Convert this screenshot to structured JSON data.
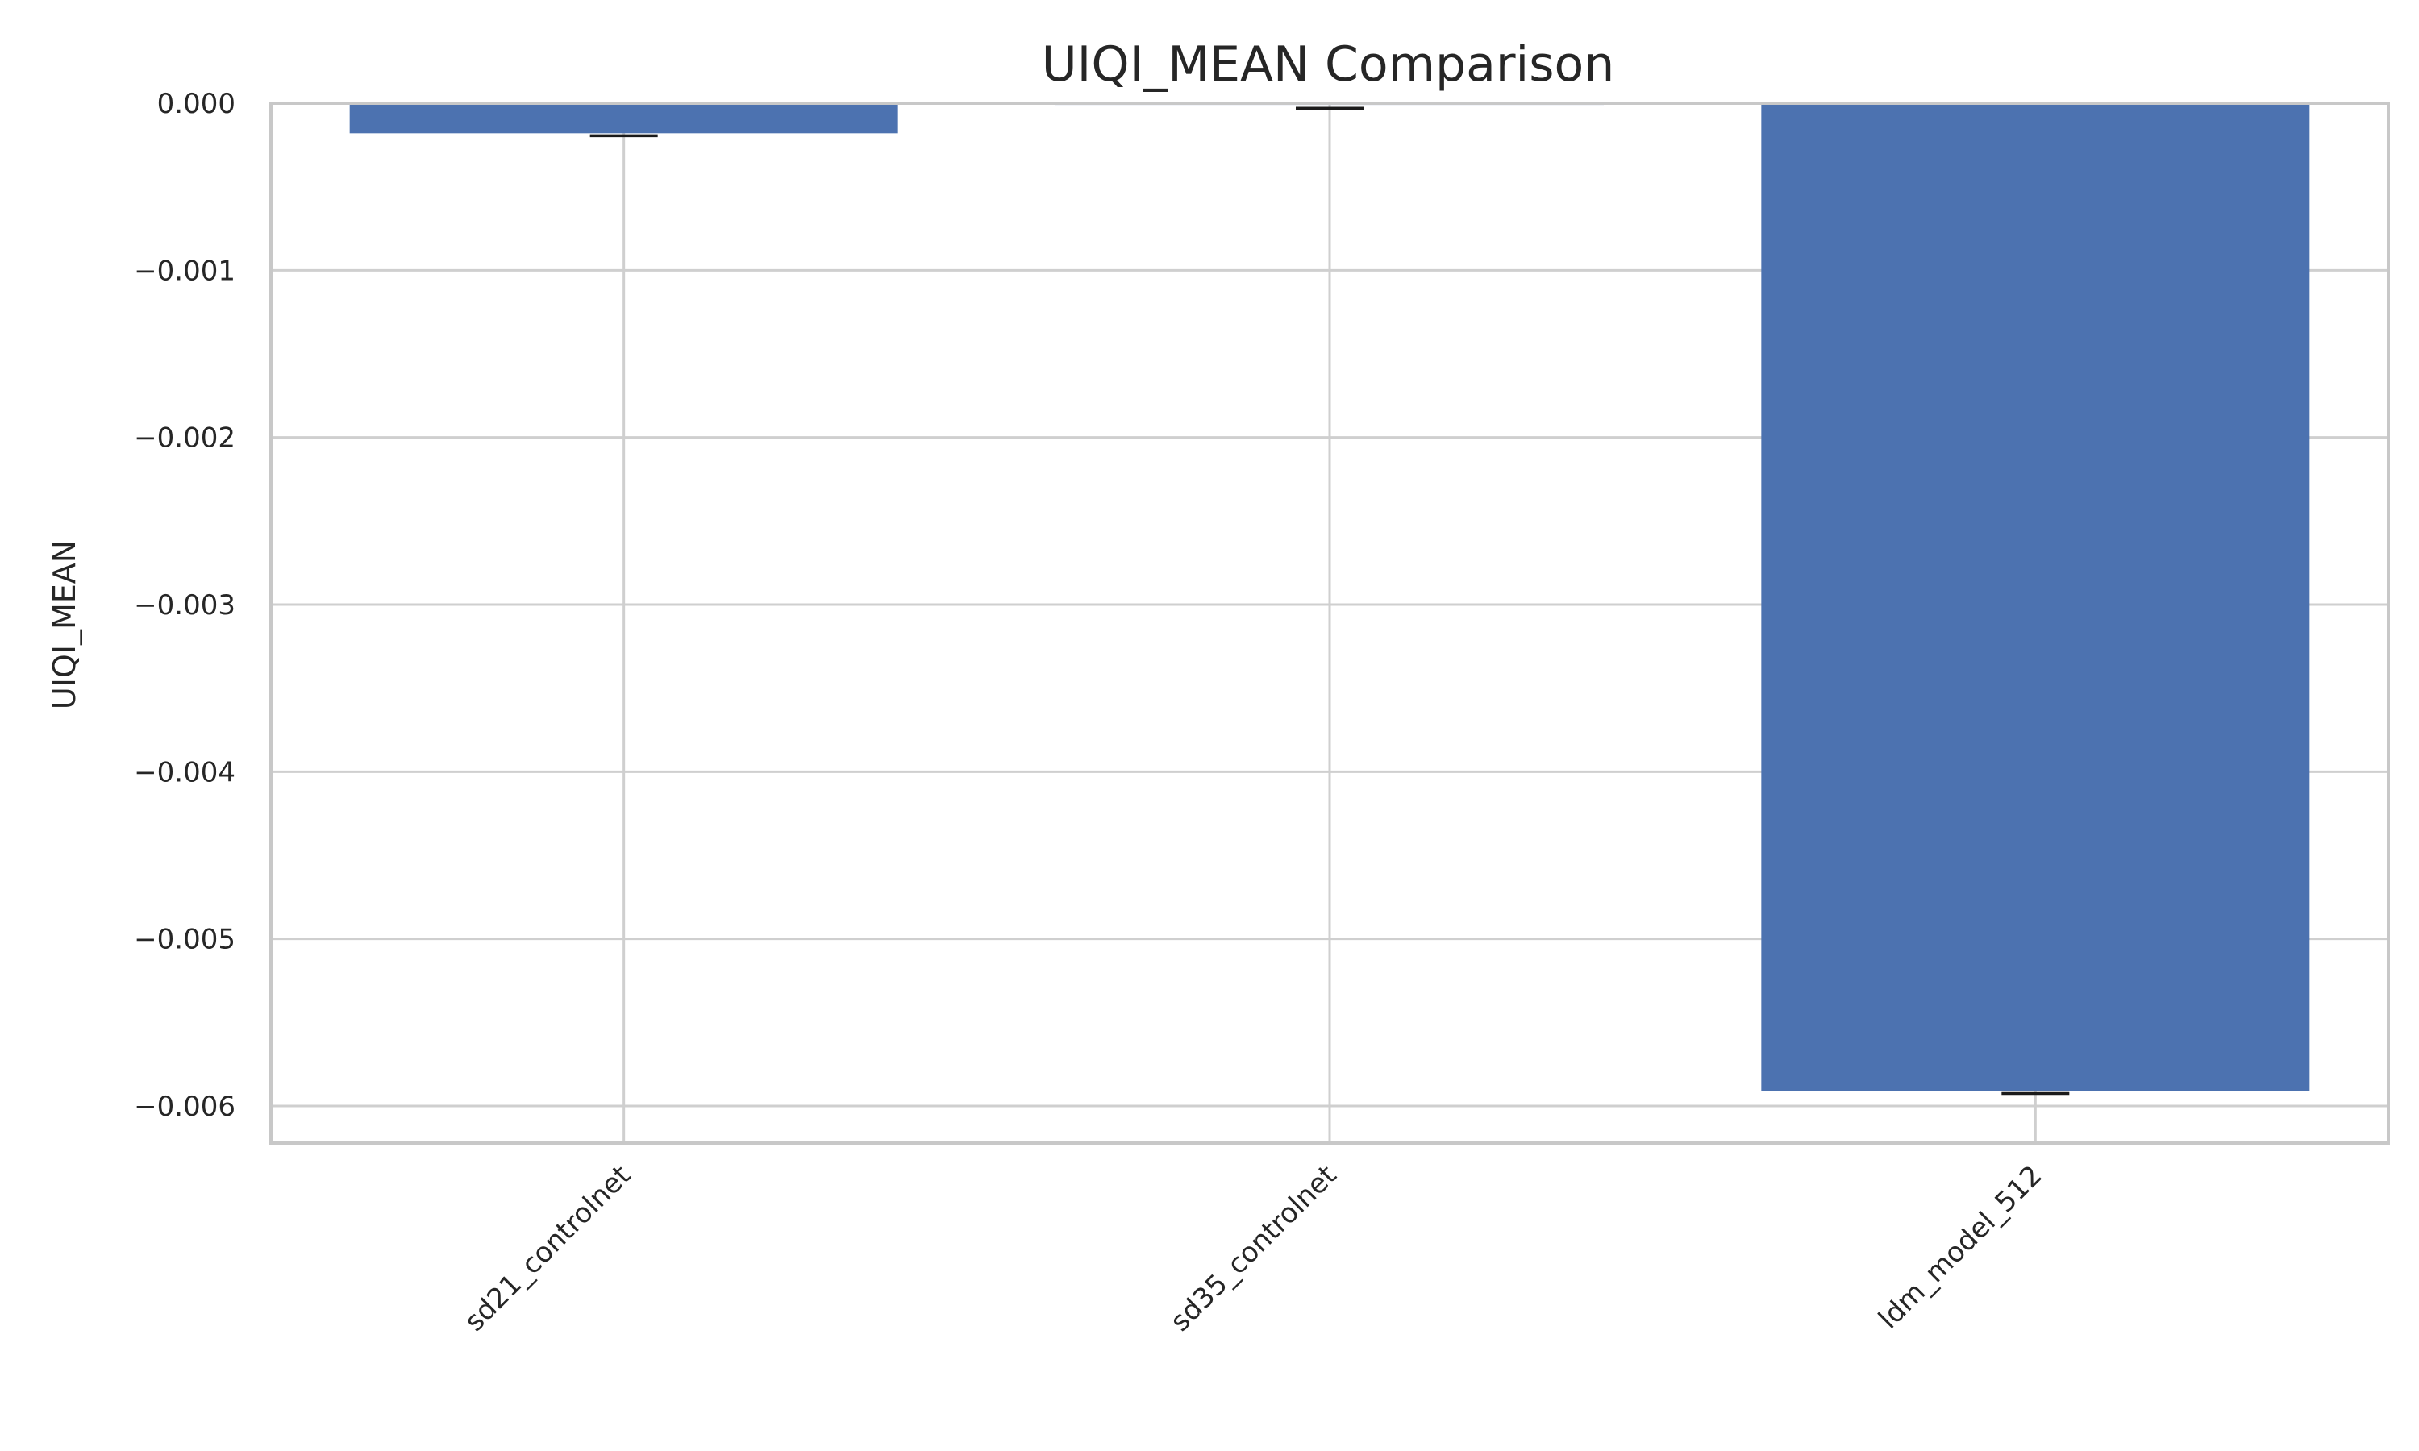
{
  "chart_data": {
    "type": "bar",
    "title": "UIQI_MEAN Comparison",
    "xlabel": "",
    "ylabel": "UIQI_MEAN",
    "categories": [
      "sd21_controlnet",
      "sd35_controlnet",
      "ldm_model_512"
    ],
    "values": [
      -0.00018,
      -1e-05,
      -0.00591
    ],
    "error_values": [
      -0.000195,
      -3e-05,
      -0.005925
    ],
    "ylim": [
      -0.0062,
      0.0
    ],
    "yticks": [
      0.0,
      -0.001,
      -0.002,
      -0.003,
      -0.004,
      -0.005,
      -0.006
    ],
    "ytick_labels": [
      "0.000",
      "−0.001",
      "−0.002",
      "−0.003",
      "−0.004",
      "−0.005",
      "−0.006"
    ],
    "grid": true,
    "bar_color": "#4c72b0",
    "error_color": "#1a1a1a",
    "grid_color": "#cfcfcf"
  }
}
